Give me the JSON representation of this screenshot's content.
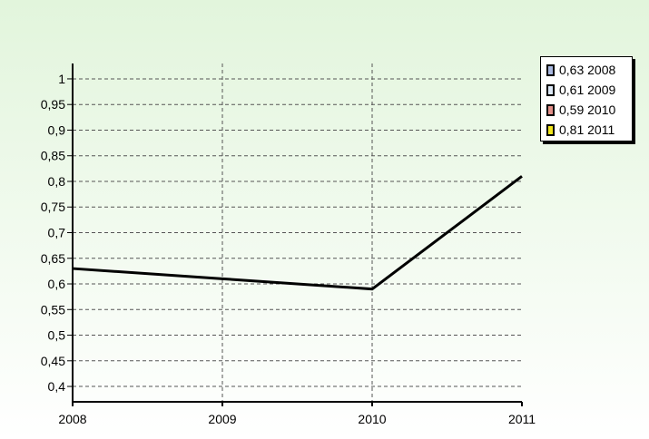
{
  "chart_data": {
    "type": "line",
    "x": [
      "2008",
      "2009",
      "2010",
      "2011"
    ],
    "series": [
      {
        "values": [
          0.63,
          0.61,
          0.59,
          0.81
        ]
      }
    ],
    "ylim": [
      0.37,
      1.03
    ],
    "yticks": [
      "1",
      "0,95",
      "0,9",
      "0,85",
      "0,8",
      "0,75",
      "0,7",
      "0,65",
      "0,6",
      "0,55",
      "0,5",
      "0,45",
      "0,4"
    ],
    "ytick_values": [
      1,
      0.95,
      0.9,
      0.85,
      0.8,
      0.75,
      0.7,
      0.65,
      0.6,
      0.55,
      0.5,
      0.45,
      0.4
    ],
    "grid": true,
    "legend_position": "top-right",
    "title": "",
    "xlabel": "",
    "ylabel": ""
  },
  "legend": {
    "items": [
      {
        "label": "0,63 2008",
        "color": "#a9b8e0"
      },
      {
        "label": "0,61 2009",
        "color": "#dce8f6"
      },
      {
        "label": "0,59 2010",
        "color": "#e3908a"
      },
      {
        "label": "0,81 2011",
        "color": "#f2e51c"
      }
    ]
  },
  "colors": {
    "background_gradient_top": "#e2f5dc",
    "background_gradient_bottom": "#ffffff",
    "line": "#000000",
    "grid": "#555555"
  }
}
